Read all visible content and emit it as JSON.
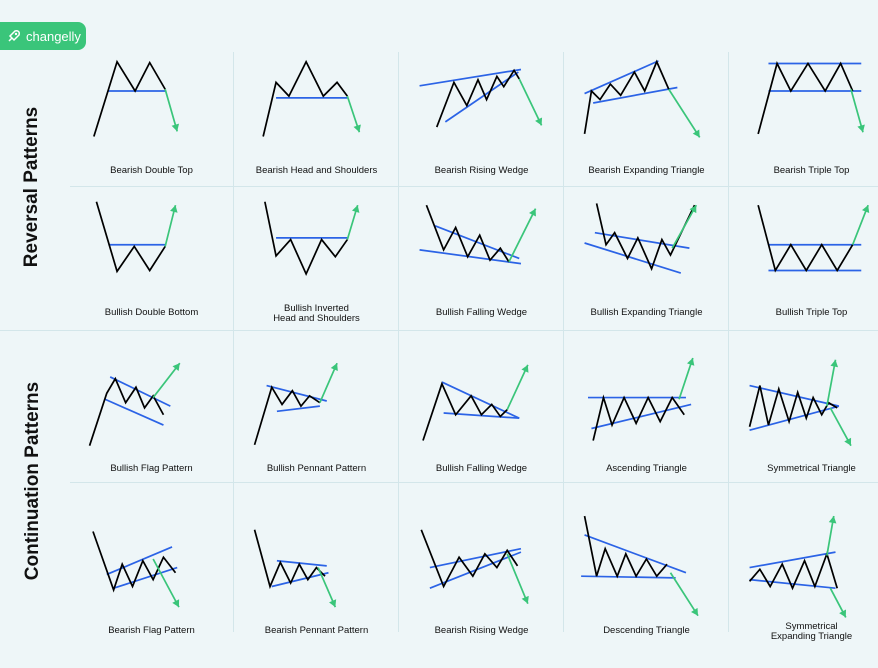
{
  "brand": {
    "name": "changelly"
  },
  "colors": {
    "price": "#000000",
    "trend": "#2b63e6",
    "breakout": "#3ac57a",
    "brand": "#3ac57a",
    "background": "#eef6f8"
  },
  "sections": {
    "reversal": "Reversal Patterns",
    "continuation": "Continuation Patterns"
  },
  "patterns": [
    {
      "label": "Bearish Double Top"
    },
    {
      "label": "Bearish Head and Shoulders"
    },
    {
      "label": "Bearish Rising Wedge"
    },
    {
      "label": "Bearish Expanding Triangle"
    },
    {
      "label": "Bearish Triple Top"
    },
    {
      "label": "Bullish Double Bottom"
    },
    {
      "label": "Bullish Inverted\nHead and Shoulders"
    },
    {
      "label": "Bullish Falling Wedge"
    },
    {
      "label": "Bullish Expanding Triangle"
    },
    {
      "label": "Bullish Triple Top"
    },
    {
      "label": "Bullish Flag Pattern"
    },
    {
      "label": "Bullish Pennant Pattern"
    },
    {
      "label": "Bullish Falling Wedge"
    },
    {
      "label": "Ascending Triangle"
    },
    {
      "label": "Symmetrical Triangle"
    },
    {
      "label": "Bearish Flag Pattern"
    },
    {
      "label": "Bearish Pennant Pattern"
    },
    {
      "label": "Bearish Rising Wedge"
    },
    {
      "label": "Descending Triangle"
    },
    {
      "label": "Symmetrical\nExpanding Triangle"
    }
  ]
}
